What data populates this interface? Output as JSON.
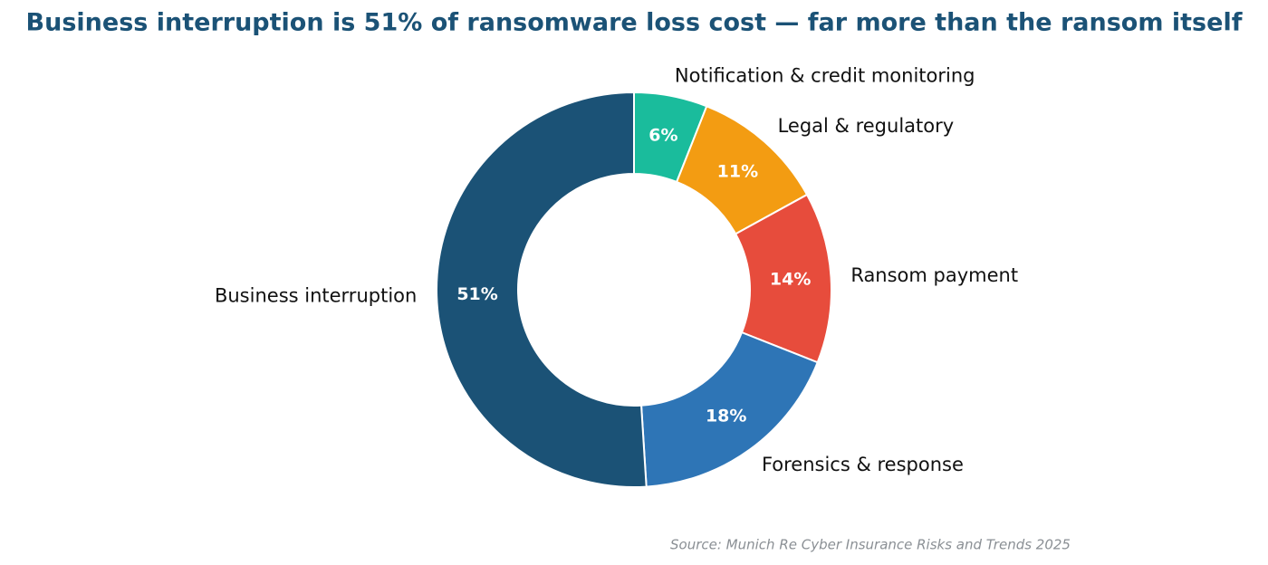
{
  "chart_data": {
    "type": "donut",
    "title": "Business interruption is 51% of ransomware loss cost — far more than the ransom itself",
    "categories": [
      "Notification & credit monitoring",
      "Legal & regulatory",
      "Ransom payment",
      "Forensics & response",
      "Business interruption"
    ],
    "values": [
      6,
      11,
      14,
      18,
      51
    ],
    "value_labels": [
      "6%",
      "11%",
      "14%",
      "18%",
      "51%"
    ],
    "colors": [
      "#1abc9c",
      "#f39c12",
      "#e74c3c",
      "#2e75b6",
      "#1b5276"
    ],
    "source": "Source: Munich Re Cyber Insurance Risks and Trends 2025"
  }
}
